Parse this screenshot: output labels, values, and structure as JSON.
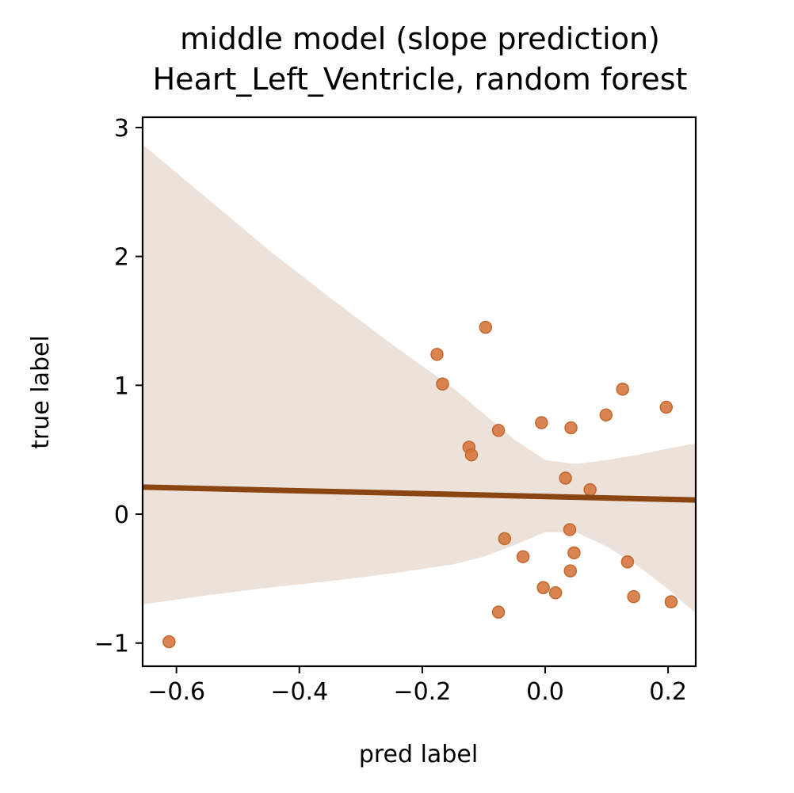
{
  "chart_data": {
    "type": "scatter",
    "title_line1": "middle model (slope prediction)",
    "title_line2": "Heart_Left_Ventricle, random forest",
    "xlabel": "pred label",
    "ylabel": "true label",
    "xlim": [
      -0.655,
      0.245
    ],
    "ylim": [
      -1.18,
      3.08
    ],
    "x_ticks": [
      -0.6,
      -0.4,
      -0.2,
      0.0,
      0.2
    ],
    "x_tick_labels": [
      "−0.6",
      "−0.4",
      "−0.2",
      "0.0",
      "0.2"
    ],
    "y_ticks": [
      -1,
      0,
      1,
      2,
      3
    ],
    "y_tick_labels": [
      "−1",
      "0",
      "1",
      "2",
      "3"
    ],
    "grid": false,
    "points": [
      {
        "x": -0.612,
        "y": -0.99
      },
      {
        "x": -0.176,
        "y": 1.24
      },
      {
        "x": -0.167,
        "y": 1.01
      },
      {
        "x": -0.097,
        "y": 1.45
      },
      {
        "x": -0.124,
        "y": 0.52
      },
      {
        "x": -0.12,
        "y": 0.46
      },
      {
        "x": -0.076,
        "y": 0.65
      },
      {
        "x": -0.076,
        "y": -0.76
      },
      {
        "x": -0.066,
        "y": -0.19
      },
      {
        "x": -0.036,
        "y": -0.33
      },
      {
        "x": -0.006,
        "y": 0.71
      },
      {
        "x": -0.003,
        "y": -0.57
      },
      {
        "x": 0.017,
        "y": -0.61
      },
      {
        "x": 0.033,
        "y": 0.28
      },
      {
        "x": 0.04,
        "y": -0.12
      },
      {
        "x": 0.042,
        "y": 0.67
      },
      {
        "x": 0.041,
        "y": -0.44
      },
      {
        "x": 0.047,
        "y": -0.3
      },
      {
        "x": 0.073,
        "y": 0.19
      },
      {
        "x": 0.099,
        "y": 0.77
      },
      {
        "x": 0.126,
        "y": 0.97
      },
      {
        "x": 0.134,
        "y": -0.37
      },
      {
        "x": 0.144,
        "y": -0.64
      },
      {
        "x": 0.197,
        "y": 0.83
      },
      {
        "x": 0.205,
        "y": -0.68
      }
    ],
    "regression_line": {
      "x": [
        -0.655,
        0.245
      ],
      "y": [
        0.21,
        0.11
      ]
    },
    "confidence_band": {
      "x": [
        -0.655,
        -0.55,
        -0.45,
        -0.35,
        -0.25,
        -0.15,
        -0.1,
        -0.05,
        0.0,
        0.05,
        0.1,
        0.15,
        0.2,
        0.245
      ],
      "upper": [
        2.87,
        2.45,
        2.05,
        1.68,
        1.32,
        0.98,
        0.78,
        0.58,
        0.42,
        0.39,
        0.42,
        0.46,
        0.51,
        0.55
      ],
      "lower": [
        -0.7,
        -0.63,
        -0.57,
        -0.52,
        -0.46,
        -0.39,
        -0.33,
        -0.24,
        -0.14,
        -0.14,
        -0.25,
        -0.4,
        -0.58,
        -0.77
      ]
    },
    "colors": {
      "points": "#d6773f",
      "point_edge": "#c0692f",
      "line": "#8b4513",
      "band": "#ede2da"
    }
  }
}
